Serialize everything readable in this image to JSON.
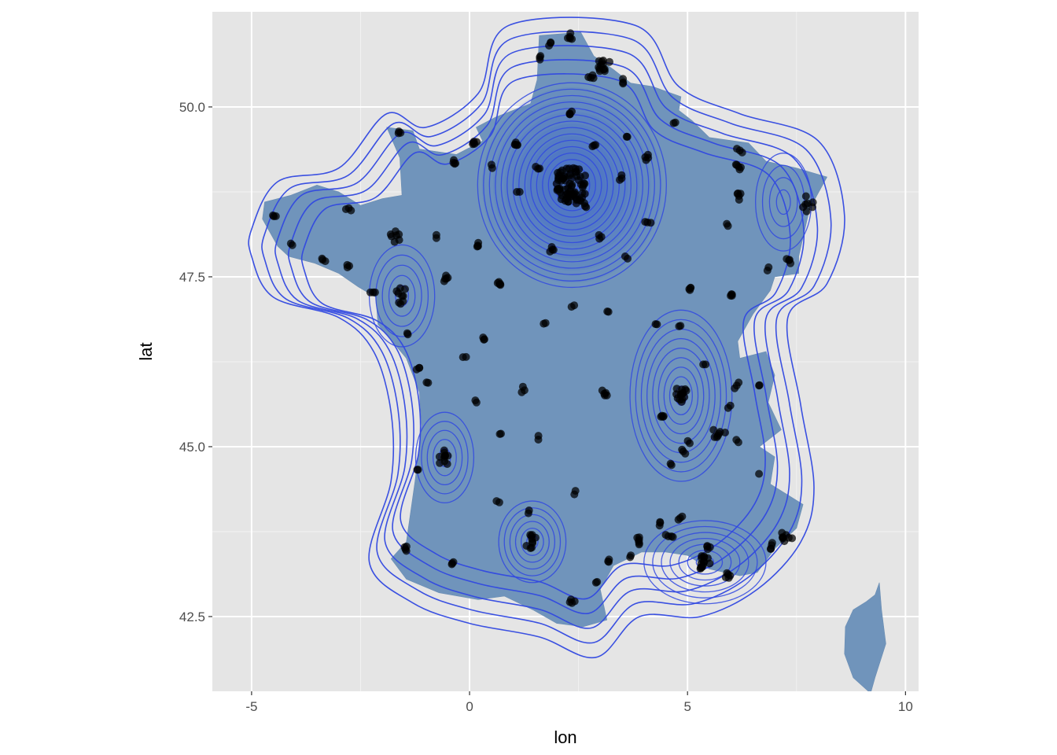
{
  "chart_data": {
    "type": "scatter",
    "xlabel": "lon",
    "ylabel": "lat",
    "xlim": [
      -5.9,
      10.3
    ],
    "ylim": [
      41.4,
      51.4
    ],
    "x_ticks": [
      {
        "value": -5,
        "label": "-5"
      },
      {
        "value": 0,
        "label": "0"
      },
      {
        "value": 5,
        "label": "5"
      },
      {
        "value": 10,
        "label": "10"
      }
    ],
    "y_ticks": [
      {
        "value": 42.5,
        "label": "42.5"
      },
      {
        "value": 45.0,
        "label": "45.0"
      },
      {
        "value": 47.5,
        "label": "47.5"
      },
      {
        "value": 50.0,
        "label": "50.0"
      }
    ],
    "grid": true,
    "panel_background": "#e5e5e5",
    "map_fill": "#7094bb",
    "contour_color": "#3048e0",
    "point_color": "#000000",
    "density_peaks": [
      {
        "lon": 2.35,
        "lat": 48.85,
        "levels": 16,
        "rx": 2.3,
        "ry": 1.6
      },
      {
        "lon": 4.85,
        "lat": 45.75,
        "levels": 9,
        "rx": 1.3,
        "ry": 1.4
      },
      {
        "lon": 5.4,
        "lat": 43.3,
        "levels": 7,
        "rx": 1.6,
        "ry": 0.7
      },
      {
        "lon": 1.44,
        "lat": 43.6,
        "levels": 6,
        "rx": 0.9,
        "ry": 0.7
      },
      {
        "lon": -0.57,
        "lat": 44.84,
        "levels": 5,
        "rx": 0.8,
        "ry": 0.8
      },
      {
        "lon": -1.55,
        "lat": 47.22,
        "levels": 5,
        "rx": 0.9,
        "ry": 0.9
      },
      {
        "lon": 7.2,
        "lat": 48.6,
        "levels": 4,
        "rx": 0.8,
        "ry": 0.9
      }
    ],
    "cities": [
      {
        "lon": 2.35,
        "lat": 48.85,
        "w": 60
      },
      {
        "lon": 5.38,
        "lat": 43.3,
        "w": 14
      },
      {
        "lon": 4.85,
        "lat": 45.76,
        "w": 14
      },
      {
        "lon": 1.44,
        "lat": 43.6,
        "w": 10
      },
      {
        "lon": 7.26,
        "lat": 43.7,
        "w": 8
      },
      {
        "lon": -1.55,
        "lat": 47.22,
        "w": 9
      },
      {
        "lon": 7.75,
        "lat": 48.58,
        "w": 7
      },
      {
        "lon": 3.88,
        "lat": 43.61,
        "w": 6
      },
      {
        "lon": -0.58,
        "lat": 44.84,
        "w": 10
      },
      {
        "lon": 3.06,
        "lat": 50.63,
        "w": 12
      },
      {
        "lon": -1.68,
        "lat": 48.11,
        "w": 7
      },
      {
        "lon": 4.03,
        "lat": 49.26,
        "w": 4
      },
      {
        "lon": 0.1,
        "lat": 49.49,
        "w": 5
      },
      {
        "lon": 4.39,
        "lat": 45.44,
        "w": 4
      },
      {
        "lon": 5.93,
        "lat": 43.12,
        "w": 5
      },
      {
        "lon": 5.72,
        "lat": 45.19,
        "w": 7
      },
      {
        "lon": 5.04,
        "lat": 47.32,
        "w": 4
      },
      {
        "lon": -0.56,
        "lat": 47.47,
        "w": 5
      },
      {
        "lon": 4.36,
        "lat": 43.84,
        "w": 3
      },
      {
        "lon": 0.69,
        "lat": 47.39,
        "w": 5
      },
      {
        "lon": 3.09,
        "lat": 45.78,
        "w": 5
      },
      {
        "lon": 1.1,
        "lat": 49.44,
        "w": 5
      },
      {
        "lon": 6.18,
        "lat": 48.69,
        "w": 5
      },
      {
        "lon": 6.17,
        "lat": 49.12,
        "w": 5
      },
      {
        "lon": 1.9,
        "lat": 47.9,
        "w": 4
      },
      {
        "lon": 2.3,
        "lat": 49.89,
        "w": 4
      },
      {
        "lon": -0.37,
        "lat": 49.18,
        "w": 4
      },
      {
        "lon": 0.2,
        "lat": 48.0,
        "w": 4
      },
      {
        "lon": 6.02,
        "lat": 47.24,
        "w": 4
      },
      {
        "lon": 7.34,
        "lat": 47.75,
        "w": 4
      },
      {
        "lon": -4.49,
        "lat": 48.39,
        "w": 3
      },
      {
        "lon": -1.15,
        "lat": 46.16,
        "w": 3
      },
      {
        "lon": 0.34,
        "lat": 46.58,
        "w": 3
      },
      {
        "lon": 1.26,
        "lat": 45.83,
        "w": 3
      },
      {
        "lon": 2.35,
        "lat": 42.7,
        "w": 4
      },
      {
        "lon": -0.37,
        "lat": 43.3,
        "w": 3
      },
      {
        "lon": -1.47,
        "lat": 43.49,
        "w": 4
      },
      {
        "lon": 6.13,
        "lat": 45.9,
        "w": 3
      },
      {
        "lon": 2.3,
        "lat": 51.03,
        "w": 5
      },
      {
        "lon": 1.86,
        "lat": 50.95,
        "w": 3
      },
      {
        "lon": 1.61,
        "lat": 50.73,
        "w": 3
      },
      {
        "lon": -1.62,
        "lat": 49.64,
        "w": 3
      },
      {
        "lon": -2.76,
        "lat": 47.66,
        "w": 3
      },
      {
        "lon": -3.37,
        "lat": 47.75,
        "w": 3
      },
      {
        "lon": -2.21,
        "lat": 47.27,
        "w": 3
      },
      {
        "lon": 3.57,
        "lat": 47.8,
        "w": 2
      },
      {
        "lon": 4.08,
        "lat": 48.3,
        "w": 3
      },
      {
        "lon": 3.16,
        "lat": 46.99,
        "w": 2
      },
      {
        "lon": 4.9,
        "lat": 44.93,
        "w": 3
      },
      {
        "lon": 6.93,
        "lat": 43.55,
        "w": 4
      },
      {
        "lon": 6.2,
        "lat": 49.36,
        "w": 3
      },
      {
        "lon": 2.78,
        "lat": 50.43,
        "w": 4
      },
      {
        "lon": 3.52,
        "lat": 50.36,
        "w": 3
      },
      {
        "lon": 4.83,
        "lat": 43.95,
        "w": 3
      },
      {
        "lon": 1.35,
        "lat": 44.02,
        "w": 2
      },
      {
        "lon": 2.43,
        "lat": 44.35,
        "w": 2
      },
      {
        "lon": 0.62,
        "lat": 44.2,
        "w": 2
      },
      {
        "lon": 0.16,
        "lat": 45.65,
        "w": 2
      },
      {
        "lon": -1.43,
        "lat": 46.67,
        "w": 2
      },
      {
        "lon": -2.77,
        "lat": 48.51,
        "w": 3
      },
      {
        "lon": -4.1,
        "lat": 47.99,
        "w": 2
      },
      {
        "lon": 2.9,
        "lat": 43.0,
        "w": 2
      },
      {
        "lon": 3.2,
        "lat": 43.34,
        "w": 3
      },
      {
        "lon": 4.63,
        "lat": 43.68,
        "w": 2
      },
      {
        "lon": 5.45,
        "lat": 43.53,
        "w": 4
      },
      {
        "lon": 6.12,
        "lat": 45.1,
        "w": 2
      },
      {
        "lon": 6.86,
        "lat": 47.64,
        "w": 2
      },
      {
        "lon": 5.36,
        "lat": 46.21,
        "w": 2
      },
      {
        "lon": 4.84,
        "lat": 46.78,
        "w": 2
      },
      {
        "lon": 2.98,
        "lat": 48.06,
        "w": 3
      },
      {
        "lon": 1.57,
        "lat": 49.09,
        "w": 3
      },
      {
        "lon": 1.15,
        "lat": 48.75,
        "w": 2
      },
      {
        "lon": 3.49,
        "lat": 48.95,
        "w": 3
      },
      {
        "lon": 2.65,
        "lat": 48.54,
        "w": 3
      },
      {
        "lon": 2.08,
        "lat": 49.04,
        "w": 3
      },
      {
        "lon": 2.82,
        "lat": 49.42,
        "w": 3
      },
      {
        "lon": 2.07,
        "lat": 48.8,
        "w": 3
      },
      {
        "lon": 2.53,
        "lat": 48.63,
        "w": 3
      },
      {
        "lon": -0.08,
        "lat": 46.32,
        "w": 2
      },
      {
        "lon": 1.7,
        "lat": 46.81,
        "w": 2
      },
      {
        "lon": 2.4,
        "lat": 47.08,
        "w": 2
      },
      {
        "lon": 1.58,
        "lat": 45.16,
        "w": 2
      },
      {
        "lon": 0.72,
        "lat": 45.19,
        "w": 2
      },
      {
        "lon": -0.95,
        "lat": 45.94,
        "w": 2
      },
      {
        "lon": -1.2,
        "lat": 44.66,
        "w": 2
      },
      {
        "lon": 4.56,
        "lat": 43.68,
        "w": 2
      },
      {
        "lon": 3.7,
        "lat": 43.4,
        "w": 2
      },
      {
        "lon": 6.64,
        "lat": 44.6,
        "w": 1
      },
      {
        "lon": 5.93,
        "lat": 45.57,
        "w": 2
      },
      {
        "lon": 6.64,
        "lat": 45.9,
        "w": 2
      },
      {
        "lon": 4.3,
        "lat": 46.8,
        "w": 2
      },
      {
        "lon": 5.9,
        "lat": 48.28,
        "w": 2
      },
      {
        "lon": 4.72,
        "lat": 49.77,
        "w": 2
      },
      {
        "lon": 3.62,
        "lat": 49.56,
        "w": 2
      },
      {
        "lon": -0.76,
        "lat": 48.07,
        "w": 2
      },
      {
        "lon": 0.52,
        "lat": 49.1,
        "w": 2
      },
      {
        "lon": 5.05,
        "lat": 45.05,
        "w": 2
      },
      {
        "lon": 4.61,
        "lat": 44.75,
        "w": 2
      }
    ]
  }
}
